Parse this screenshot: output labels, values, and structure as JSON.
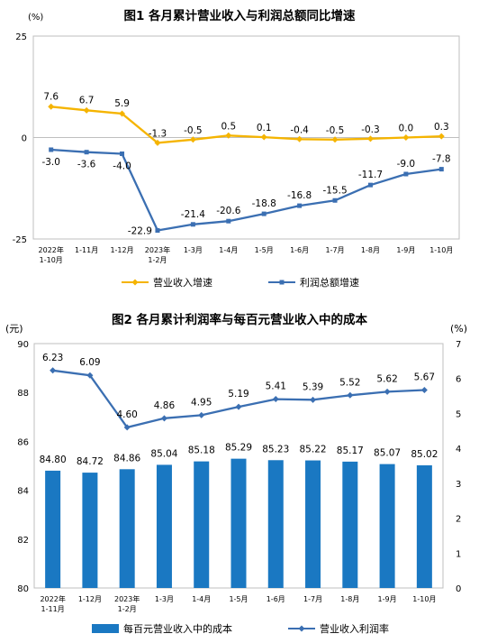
{
  "colors": {
    "revenue": "#f5b400",
    "profit": "#3b6fb2",
    "bar": "#1a78c2",
    "rate": "#3b6fb2"
  },
  "chart_data": [
    {
      "type": "line",
      "title": "图1  各月累计营业收入与利润总额同比增速",
      "ylabel": "(%)",
      "ylim": [
        -25,
        25
      ],
      "yticks": [
        "25",
        "0",
        "-25"
      ],
      "categories": [
        [
          "2022年",
          "1-10月"
        ],
        [
          "1-11月"
        ],
        [
          "1-12月"
        ],
        [
          "2023年",
          "1-2月"
        ],
        [
          "1-3月"
        ],
        [
          "1-4月"
        ],
        [
          "1-5月"
        ],
        [
          "1-6月"
        ],
        [
          "1-7月"
        ],
        [
          "1-8月"
        ],
        [
          "1-9月"
        ],
        [
          "1-10月"
        ]
      ],
      "series": [
        {
          "name": "营业收入增速",
          "values": [
            7.6,
            6.7,
            5.9,
            -1.3,
            -0.5,
            0.5,
            0.1,
            -0.4,
            -0.5,
            -0.3,
            0.0,
            0.3
          ],
          "labels": [
            "7.6",
            "6.7",
            "5.9",
            "-1.3",
            "-0.5",
            "0.5",
            "0.1",
            "-0.4",
            "-0.5",
            "-0.3",
            "0.0",
            "0.3"
          ]
        },
        {
          "name": "利润总额增速",
          "values": [
            -3.0,
            -3.6,
            -4.0,
            -22.9,
            -21.4,
            -20.6,
            -18.8,
            -16.8,
            -15.5,
            -11.7,
            -9.0,
            -7.8
          ],
          "labels": [
            "-3.0",
            "-3.6",
            "-4.0",
            "-22.9",
            "-21.4",
            "-20.6",
            "-18.8",
            "-16.8",
            "-15.5",
            "-11.7",
            "-9.0",
            "-7.8"
          ]
        }
      ],
      "legend_position": "bottom"
    },
    {
      "type": "bar+line",
      "title": "图2  各月累计利润率与每百元营业收入中的成本",
      "ylabel_left": "(元)",
      "ylabel_right": "(%)",
      "ylim_left": [
        80,
        90
      ],
      "ylim_right": [
        0,
        7
      ],
      "yticks_left": [
        "90",
        "88",
        "86",
        "84",
        "82",
        "80"
      ],
      "yticks_right": [
        "7",
        "6",
        "5",
        "4",
        "3",
        "2",
        "1",
        "0"
      ],
      "categories": [
        [
          "2022年",
          "1-11月"
        ],
        [
          "1-12月"
        ],
        [
          "2023年",
          "1-2月"
        ],
        [
          "1-3月"
        ],
        [
          "1-4月"
        ],
        [
          "1-5月"
        ],
        [
          "1-6月"
        ],
        [
          "1-7月"
        ],
        [
          "1-8月"
        ],
        [
          "1-9月"
        ],
        [
          "1-10月"
        ]
      ],
      "series": [
        {
          "name": "每百元营业收入中的成本",
          "type": "bar",
          "axis": "left",
          "values": [
            84.8,
            84.72,
            84.86,
            85.04,
            85.18,
            85.29,
            85.23,
            85.22,
            85.17,
            85.07,
            85.02
          ],
          "labels": [
            "84.80",
            "84.72",
            "84.86",
            "85.04",
            "85.18",
            "85.29",
            "85.23",
            "85.22",
            "85.17",
            "85.07",
            "85.02"
          ]
        },
        {
          "name": "营业收入利润率",
          "type": "line",
          "axis": "right",
          "values": [
            6.23,
            6.09,
            4.6,
            4.86,
            4.95,
            5.19,
            5.41,
            5.39,
            5.52,
            5.62,
            5.67
          ],
          "labels": [
            "6.23",
            "6.09",
            "4.60",
            "4.86",
            "4.95",
            "5.19",
            "5.41",
            "5.39",
            "5.52",
            "5.62",
            "5.67"
          ]
        }
      ],
      "legend_position": "bottom"
    }
  ]
}
